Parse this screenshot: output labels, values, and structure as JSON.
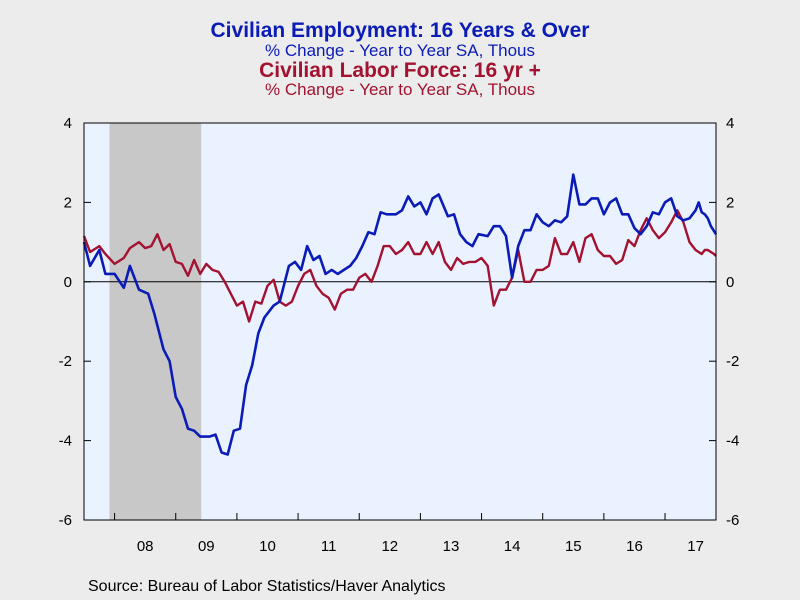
{
  "titles": {
    "series1_title": "Civilian Employment: 16 Years & Over",
    "series1_subtitle": "% Change - Year to Year    SA, Thous",
    "series2_title": "Civilian Labor Force: 16 yr +",
    "series2_subtitle": "% Change - Year to Year    SA, Thous"
  },
  "source": "Source:  Bureau of Labor Statistics/Haver Analytics",
  "colors": {
    "employment": "#0a1cb5",
    "labor_force": "#a31230",
    "plot_bg": "#eaf2ff",
    "recession": "#c8c8c8"
  },
  "chart_data": {
    "type": "line",
    "x_start": 2007.5,
    "x_end": 2017.8333,
    "ylim": [
      -6,
      4
    ],
    "y_ticks": [
      4,
      2,
      0,
      -2,
      -4,
      -6
    ],
    "y_tick_labels": [
      "4",
      "2",
      "0",
      "-2",
      "-4",
      "-6"
    ],
    "x_tick_labels": [
      {
        "label": "08",
        "x": 2008.5
      },
      {
        "label": "09",
        "x": 2009.5
      },
      {
        "label": "10",
        "x": 2010.5
      },
      {
        "label": "11",
        "x": 2011.5
      },
      {
        "label": "12",
        "x": 2012.5
      },
      {
        "label": "13",
        "x": 2013.5
      },
      {
        "label": "14",
        "x": 2014.5
      },
      {
        "label": "15",
        "x": 2015.5
      },
      {
        "label": "16",
        "x": 2016.5
      },
      {
        "label": "17",
        "x": 2017.5
      }
    ],
    "recession": [
      2007.917,
      2009.417
    ],
    "grid": false,
    "series": [
      {
        "name": "Civilian Employment: 16 Years & Over",
        "points": [
          [
            2007.5,
            1.0
          ],
          [
            2007.6,
            0.4
          ],
          [
            2007.75,
            0.8
          ],
          [
            2007.85,
            0.2
          ],
          [
            2008.0,
            0.2
          ],
          [
            2008.15,
            -0.15
          ],
          [
            2008.25,
            0.4
          ],
          [
            2008.4,
            -0.2
          ],
          [
            2008.55,
            -0.3
          ],
          [
            2008.65,
            -0.8
          ],
          [
            2008.8,
            -1.7
          ],
          [
            2008.9,
            -2.0
          ],
          [
            2009.0,
            -2.9
          ],
          [
            2009.1,
            -3.2
          ],
          [
            2009.2,
            -3.7
          ],
          [
            2009.3,
            -3.75
          ],
          [
            2009.4,
            -3.9
          ],
          [
            2009.55,
            -3.9
          ],
          [
            2009.65,
            -3.85
          ],
          [
            2009.75,
            -4.3
          ],
          [
            2009.85,
            -4.35
          ],
          [
            2009.95,
            -3.75
          ],
          [
            2010.05,
            -3.7
          ],
          [
            2010.15,
            -2.6
          ],
          [
            2010.25,
            -2.1
          ],
          [
            2010.35,
            -1.3
          ],
          [
            2010.45,
            -0.9
          ],
          [
            2010.6,
            -0.6
          ],
          [
            2010.7,
            -0.5
          ],
          [
            2010.85,
            0.4
          ],
          [
            2010.95,
            0.5
          ],
          [
            2011.05,
            0.3
          ],
          [
            2011.15,
            0.9
          ],
          [
            2011.25,
            0.55
          ],
          [
            2011.35,
            0.65
          ],
          [
            2011.45,
            0.2
          ],
          [
            2011.55,
            0.3
          ],
          [
            2011.65,
            0.2
          ],
          [
            2011.85,
            0.4
          ],
          [
            2011.95,
            0.6
          ],
          [
            2012.05,
            0.9
          ],
          [
            2012.15,
            1.25
          ],
          [
            2012.25,
            1.2
          ],
          [
            2012.35,
            1.75
          ],
          [
            2012.45,
            1.7
          ],
          [
            2012.6,
            1.7
          ],
          [
            2012.7,
            1.8
          ],
          [
            2012.8,
            2.15
          ],
          [
            2012.9,
            1.9
          ],
          [
            2013.0,
            2.0
          ],
          [
            2013.1,
            1.7
          ],
          [
            2013.2,
            2.1
          ],
          [
            2013.3,
            2.2
          ],
          [
            2013.45,
            1.65
          ],
          [
            2013.55,
            1.7
          ],
          [
            2013.65,
            1.2
          ],
          [
            2013.75,
            1.0
          ],
          [
            2013.85,
            0.9
          ],
          [
            2013.95,
            1.2
          ],
          [
            2014.1,
            1.15
          ],
          [
            2014.2,
            1.4
          ],
          [
            2014.3,
            1.4
          ],
          [
            2014.4,
            1.15
          ],
          [
            2014.5,
            0.1
          ],
          [
            2014.6,
            0.9
          ],
          [
            2014.7,
            1.3
          ],
          [
            2014.8,
            1.3
          ],
          [
            2014.9,
            1.7
          ],
          [
            2015.0,
            1.5
          ],
          [
            2015.1,
            1.4
          ],
          [
            2015.2,
            1.55
          ],
          [
            2015.3,
            1.5
          ],
          [
            2015.4,
            1.65
          ],
          [
            2015.5,
            2.7
          ],
          [
            2015.6,
            1.95
          ],
          [
            2015.7,
            1.95
          ],
          [
            2015.8,
            2.1
          ],
          [
            2015.9,
            2.1
          ],
          [
            2016.0,
            1.7
          ],
          [
            2016.1,
            2.0
          ],
          [
            2016.2,
            2.1
          ],
          [
            2016.3,
            1.7
          ],
          [
            2016.4,
            1.7
          ],
          [
            2016.5,
            1.35
          ],
          [
            2016.6,
            1.2
          ],
          [
            2016.7,
            1.4
          ],
          [
            2016.8,
            1.75
          ],
          [
            2016.9,
            1.7
          ],
          [
            2017.0,
            2.0
          ],
          [
            2017.1,
            2.1
          ],
          [
            2017.2,
            1.65
          ],
          [
            2017.3,
            1.55
          ],
          [
            2017.4,
            1.6
          ],
          [
            2017.5,
            1.8
          ],
          [
            2017.55,
            2.0
          ],
          [
            2017.6,
            1.75
          ],
          [
            2017.65,
            1.7
          ],
          [
            2017.7,
            1.6
          ],
          [
            2017.75,
            1.4
          ],
          [
            2017.8333,
            1.2
          ]
        ]
      },
      {
        "name": "Civilian Labor Force: 16 yr +",
        "points": [
          [
            2007.5,
            1.15
          ],
          [
            2007.6,
            0.75
          ],
          [
            2007.75,
            0.9
          ],
          [
            2007.85,
            0.7
          ],
          [
            2008.0,
            0.45
          ],
          [
            2008.15,
            0.6
          ],
          [
            2008.25,
            0.85
          ],
          [
            2008.4,
            1.0
          ],
          [
            2008.5,
            0.85
          ],
          [
            2008.6,
            0.9
          ],
          [
            2008.7,
            1.2
          ],
          [
            2008.8,
            0.8
          ],
          [
            2008.9,
            0.95
          ],
          [
            2009.0,
            0.5
          ],
          [
            2009.1,
            0.45
          ],
          [
            2009.2,
            0.15
          ],
          [
            2009.3,
            0.55
          ],
          [
            2009.4,
            0.2
          ],
          [
            2009.5,
            0.45
          ],
          [
            2009.6,
            0.3
          ],
          [
            2009.7,
            0.25
          ],
          [
            2009.8,
            0.0
          ],
          [
            2009.9,
            -0.3
          ],
          [
            2010.0,
            -0.6
          ],
          [
            2010.1,
            -0.5
          ],
          [
            2010.2,
            -1.0
          ],
          [
            2010.3,
            -0.5
          ],
          [
            2010.4,
            -0.55
          ],
          [
            2010.5,
            -0.1
          ],
          [
            2010.6,
            0.05
          ],
          [
            2010.7,
            -0.5
          ],
          [
            2010.8,
            -0.6
          ],
          [
            2010.9,
            -0.5
          ],
          [
            2011.0,
            -0.1
          ],
          [
            2011.1,
            0.2
          ],
          [
            2011.2,
            0.3
          ],
          [
            2011.3,
            -0.1
          ],
          [
            2011.4,
            -0.3
          ],
          [
            2011.5,
            -0.4
          ],
          [
            2011.6,
            -0.7
          ],
          [
            2011.7,
            -0.3
          ],
          [
            2011.8,
            -0.2
          ],
          [
            2011.9,
            -0.2
          ],
          [
            2012.0,
            0.1
          ],
          [
            2012.1,
            0.2
          ],
          [
            2012.2,
            0.0
          ],
          [
            2012.3,
            0.4
          ],
          [
            2012.4,
            0.9
          ],
          [
            2012.5,
            0.9
          ],
          [
            2012.6,
            0.7
          ],
          [
            2012.7,
            0.8
          ],
          [
            2012.8,
            1.0
          ],
          [
            2012.9,
            0.7
          ],
          [
            2013.0,
            0.7
          ],
          [
            2013.1,
            1.0
          ],
          [
            2013.2,
            0.7
          ],
          [
            2013.3,
            1.0
          ],
          [
            2013.4,
            0.5
          ],
          [
            2013.5,
            0.3
          ],
          [
            2013.6,
            0.6
          ],
          [
            2013.7,
            0.45
          ],
          [
            2013.8,
            0.5
          ],
          [
            2013.9,
            0.5
          ],
          [
            2014.0,
            0.6
          ],
          [
            2014.1,
            0.4
          ],
          [
            2014.2,
            -0.6
          ],
          [
            2014.3,
            -0.2
          ],
          [
            2014.4,
            -0.2
          ],
          [
            2014.5,
            0.1
          ],
          [
            2014.6,
            0.8
          ],
          [
            2014.7,
            0.0
          ],
          [
            2014.8,
            0.0
          ],
          [
            2014.9,
            0.3
          ],
          [
            2015.0,
            0.3
          ],
          [
            2015.1,
            0.4
          ],
          [
            2015.2,
            1.1
          ],
          [
            2015.3,
            0.7
          ],
          [
            2015.4,
            0.7
          ],
          [
            2015.5,
            1.0
          ],
          [
            2015.6,
            0.5
          ],
          [
            2015.7,
            1.1
          ],
          [
            2015.8,
            1.2
          ],
          [
            2015.9,
            0.8
          ],
          [
            2016.0,
            0.65
          ],
          [
            2016.1,
            0.65
          ],
          [
            2016.2,
            0.45
          ],
          [
            2016.3,
            0.55
          ],
          [
            2016.4,
            1.05
          ],
          [
            2016.5,
            0.9
          ],
          [
            2016.6,
            1.3
          ],
          [
            2016.7,
            1.6
          ],
          [
            2016.8,
            1.3
          ],
          [
            2016.9,
            1.1
          ],
          [
            2017.0,
            1.25
          ],
          [
            2017.1,
            1.5
          ],
          [
            2017.2,
            1.8
          ],
          [
            2017.3,
            1.5
          ],
          [
            2017.4,
            1.0
          ],
          [
            2017.5,
            0.8
          ],
          [
            2017.6,
            0.7
          ],
          [
            2017.65,
            0.8
          ],
          [
            2017.7,
            0.8
          ],
          [
            2017.75,
            0.75
          ],
          [
            2017.8,
            0.7
          ],
          [
            2017.8333,
            0.65
          ]
        ]
      }
    ]
  }
}
